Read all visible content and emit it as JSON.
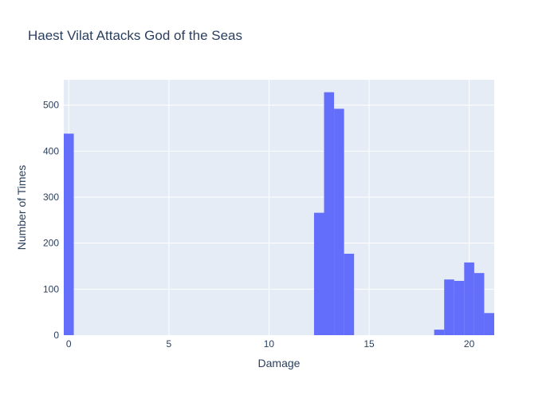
{
  "chart_data": {
    "type": "bar",
    "title": "Haest Vilat Attacks God of the Seas",
    "xlabel": "Damage",
    "ylabel": "Number of Times",
    "xlim": [
      -0.25,
      21.25
    ],
    "ylim": [
      0,
      555
    ],
    "x_ticks": [
      0,
      5,
      10,
      15,
      20
    ],
    "y_ticks": [
      0,
      100,
      200,
      300,
      400,
      500
    ],
    "bin_width": 0.5,
    "bar_color": "#636efa",
    "plot_bgcolor": "#e5ecf6",
    "grid": true,
    "bins": [
      {
        "x0": -0.25,
        "x1": 0.25,
        "count": 438
      },
      {
        "x0": 12.25,
        "x1": 12.75,
        "count": 266
      },
      {
        "x0": 12.75,
        "x1": 13.25,
        "count": 528
      },
      {
        "x0": 13.25,
        "x1": 13.75,
        "count": 492
      },
      {
        "x0": 13.75,
        "x1": 14.25,
        "count": 177
      },
      {
        "x0": 18.25,
        "x1": 18.75,
        "count": 12
      },
      {
        "x0": 18.75,
        "x1": 19.25,
        "count": 121
      },
      {
        "x0": 19.25,
        "x1": 19.75,
        "count": 118
      },
      {
        "x0": 19.75,
        "x1": 20.25,
        "count": 158
      },
      {
        "x0": 20.25,
        "x1": 20.75,
        "count": 135
      },
      {
        "x0": 20.75,
        "x1": 21.25,
        "count": 48
      }
    ]
  }
}
